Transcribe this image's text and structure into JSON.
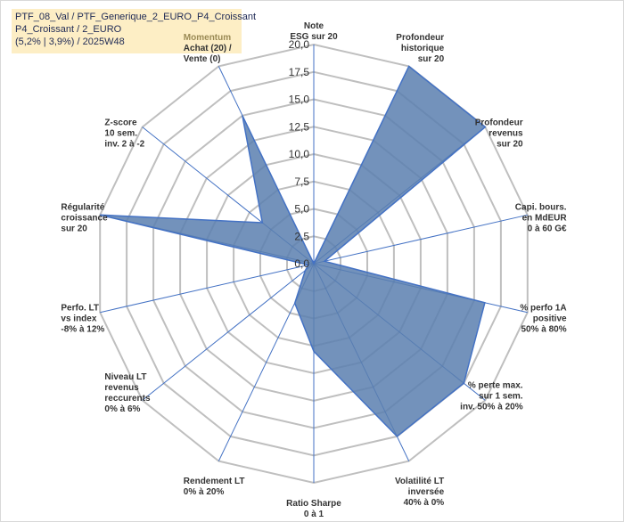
{
  "title": {
    "line1": "PTF_08_Val / PTF_Generique_2_EURO_P4_Croissant",
    "line2": "P4_Croissant / 2_EURO",
    "line3": "(5,2% | 3,9%) / 2025W48"
  },
  "chart_data": {
    "type": "radar",
    "rmin": 0,
    "rmax": 20,
    "ticks": [
      "0,0",
      "2,5",
      "5,0",
      "7,5",
      "10,0",
      "12,5",
      "15,0",
      "17,5",
      "20,0"
    ],
    "axes": [
      {
        "label": [
          "Note",
          "ESG sur 20"
        ],
        "value": 0
      },
      {
        "label": [
          "Profondeur",
          "historique",
          "sur 20"
        ],
        "value": 20
      },
      {
        "label": [
          "Profondeur",
          "revenus",
          "sur 20"
        ],
        "value": 20
      },
      {
        "label": [
          "Capi. bours.",
          "en MdEUR",
          "0 à 60 G€"
        ],
        "value": 1
      },
      {
        "label": [
          "% perfo 1A",
          "positive",
          "50% à 80%"
        ],
        "value": 16
      },
      {
        "label": [
          "% perte max.",
          "sur 1 sem.",
          "inv. 50% à 20%"
        ],
        "value": 17.5
      },
      {
        "label": [
          "Volatilité LT",
          "inversée",
          "40% à 0%"
        ],
        "value": 17.5
      },
      {
        "label": [
          "Ratio Sharpe",
          "0 à 1"
        ],
        "value": 8
      },
      {
        "label": [
          "Rendement LT",
          "0% à 20%"
        ],
        "value": 4
      },
      {
        "label": [
          "Niveau LT",
          "revenus",
          "reccurents",
          "0% à 6%"
        ],
        "value": 1
      },
      {
        "label": [
          "Perfo. LT",
          "vs index",
          "-8% à 12%"
        ],
        "value": 0.5
      },
      {
        "label": [
          "Régularité",
          "croissance",
          "sur 20"
        ],
        "value": 20
      },
      {
        "label": [
          "Z-score",
          "10 sem.",
          "inv. 2 à -2"
        ],
        "value": 6
      },
      {
        "label": [
          "Momentum",
          "Achat (20) /",
          "Vente (0)"
        ],
        "value": 15
      }
    ],
    "colors": {
      "fill": "#5b7faf",
      "stroke": "#4472c4",
      "grid": "#bfbfbf",
      "spoke": "#4472c4"
    }
  }
}
